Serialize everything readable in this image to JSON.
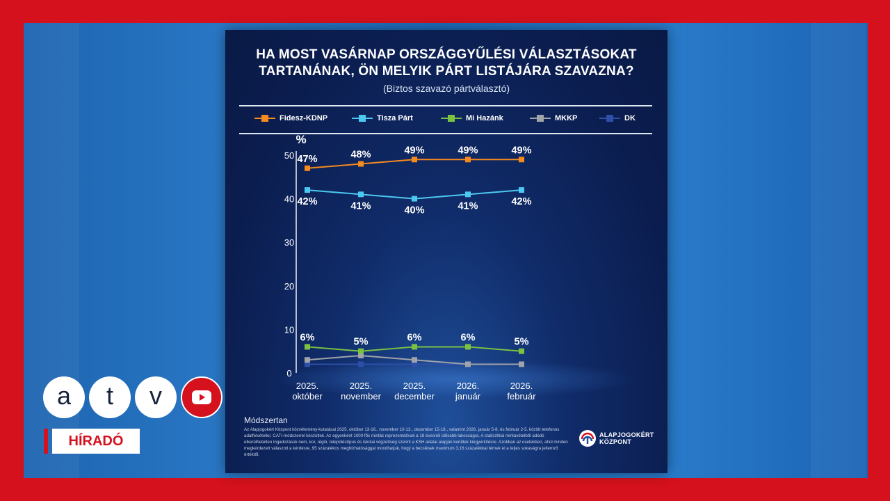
{
  "broadcast": {
    "channel_letters": [
      "a",
      "t",
      "v"
    ],
    "youtube_icon": "youtube-play-icon",
    "program": "HÍRADÓ"
  },
  "colors": {
    "frame_red": "#d5111d",
    "panel_bg": "#0b1d4f",
    "fidesz": "#f58a1f",
    "tisza": "#4cc9f0",
    "mihazank": "#7cc242",
    "mkkp": "#a0a4aa",
    "dk": "#2e4fa8"
  },
  "chart_data": {
    "type": "line",
    "title": "HA MOST VASÁRNAP ORSZÁGGYŰLÉSI VÁLASZTÁSOKAT TARTANÁNAK, ÖN MELYIK PÁRT LISTÁJÁRA SZAVAZNA?",
    "title_lines": [
      "HA MOST VASÁRNAP ORSZÁGGYŰLÉSI VÁLASZTÁSOKAT",
      "TARTANÁNAK, ÖN MELYIK PÁRT LISTÁJÁRA SZAVAZNA?"
    ],
    "subtitle": "(Biztos szavazó pártválasztó)",
    "ylabel": "%",
    "ylim": [
      0,
      50
    ],
    "yticks": [
      "0",
      "10",
      "20",
      "30",
      "40",
      "50"
    ],
    "grid": false,
    "legend_position": "top",
    "categories": [
      [
        "2025.",
        "október"
      ],
      [
        "2025.",
        "november"
      ],
      [
        "2025.",
        "december"
      ],
      [
        "2026.",
        "január"
      ],
      [
        "2026.",
        "február"
      ]
    ],
    "series": [
      {
        "name": "Fidesz-KDNP",
        "color": "#f58a1f",
        "values": [
          47,
          48,
          49,
          49,
          49
        ],
        "labels": [
          "47%",
          "48%",
          "49%",
          "49%",
          "49%"
        ],
        "label_position": "above"
      },
      {
        "name": "Tisza Párt",
        "color": "#4cc9f0",
        "values": [
          42,
          41,
          40,
          41,
          42
        ],
        "labels": [
          "42%",
          "41%",
          "40%",
          "41%",
          "42%"
        ],
        "label_position": "below"
      },
      {
        "name": "Mi Hazánk",
        "color": "#7cc242",
        "values": [
          6,
          5,
          6,
          6,
          5
        ],
        "labels": [
          "6%",
          "5%",
          "6%",
          "6%",
          "5%"
        ],
        "label_position": "above"
      },
      {
        "name": "MKKP",
        "color": "#a0a4aa",
        "values": [
          3,
          4,
          3,
          2,
          2
        ],
        "labels": [],
        "label_position": "none"
      },
      {
        "name": "DK",
        "color": "#2e4fa8",
        "values": [
          2,
          2,
          2,
          2,
          2
        ],
        "labels": [],
        "label_position": "none"
      }
    ]
  },
  "methodology": {
    "title": "Módszertan",
    "text": "Az Alapjogokért Központ közvélemény-kutatásai 2025. október 13-16., november 10-13., december 15-18., valamint 2026. január 5-8. és február 2-5. között telefonos adatfelvétellel, CATI-módszerrel készültek. Az egyenként 1000 fős minták reprezentatívak a 18 évesnél idősebb lakosságra. A statisztikai mintavételből adódó elkerülhetetlen ingadozások nem, kor, régió, településtípus és iskolai végzettség szerint a KSH adatai alapján kerültek kiegyenlítésre. Azokban az esetekben, ahol minden megkérdezett válaszolt a kérdésre, 95 százalékos megbízhatósággal mondhatjuk, hogy a becslések maximum 3,16 százalékkal térnek el a teljes sokaságra jellemző értéktől."
  },
  "source_logo": {
    "line1": "ALAPJOGOKÉRT",
    "line2": "KÖZPONT"
  }
}
